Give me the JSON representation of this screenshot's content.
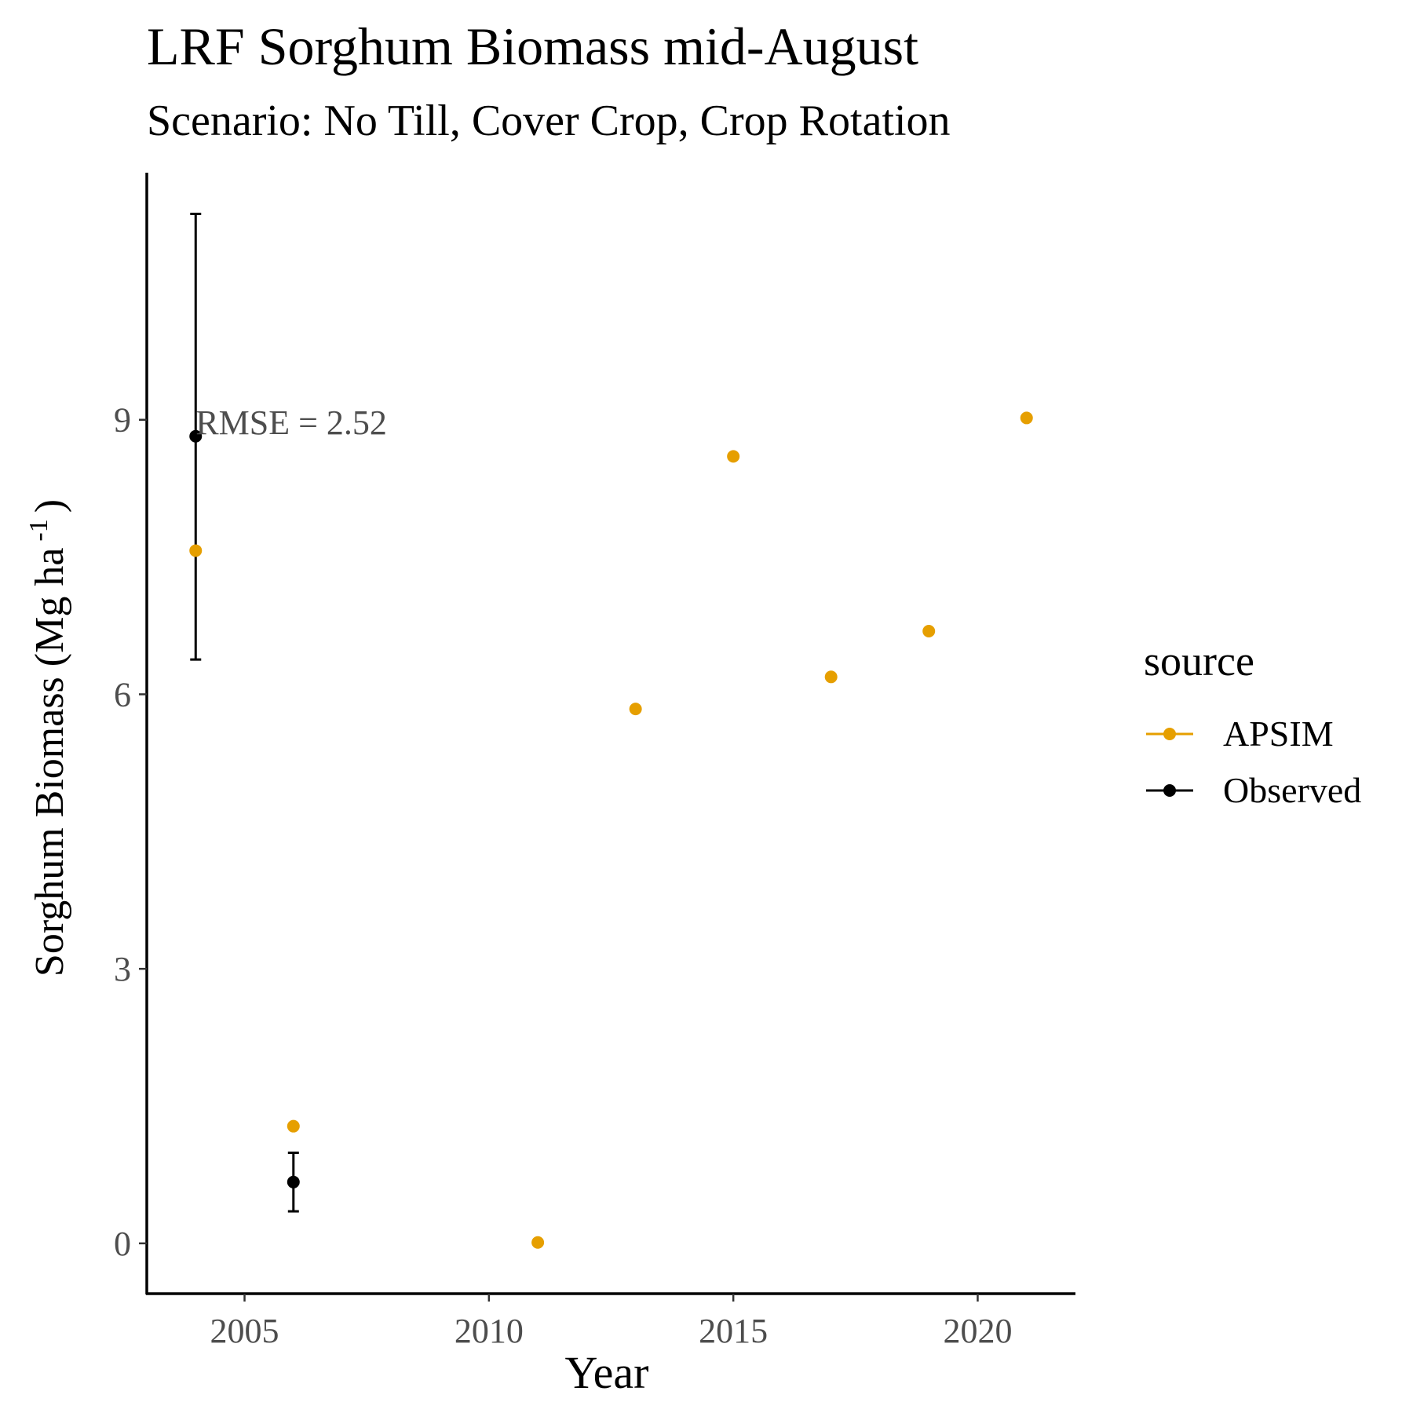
{
  "chart_data": {
    "type": "scatter",
    "title": "LRF Sorghum Biomass mid-August",
    "subtitle": "Scenario: No Till, Cover Crop, Crop Rotation",
    "xlabel": "Year",
    "ylabel": "Sorghum Biomass (Mg ha",
    "ylabel_superscript": "-1",
    "ylabel_close": ")",
    "xlim": [
      2003,
      2022
    ],
    "ylim": [
      -0.55,
      11.7
    ],
    "xticks": [
      2005,
      2010,
      2015,
      2020
    ],
    "yticks": [
      0,
      3,
      6,
      9
    ],
    "grid": false,
    "legend": {
      "title": "source",
      "position": "right",
      "entries": [
        "APSIM",
        "Observed"
      ]
    },
    "annotation": {
      "text": "RMSE = 2.52",
      "x": 2004,
      "y": 8.98
    },
    "series": [
      {
        "name": "APSIM",
        "color": "#E69F00",
        "points": [
          {
            "x": 2004,
            "y": 7.57
          },
          {
            "x": 2006,
            "y": 1.28
          },
          {
            "x": 2011,
            "y": 0.01
          },
          {
            "x": 2013,
            "y": 5.84
          },
          {
            "x": 2015,
            "y": 8.6
          },
          {
            "x": 2017,
            "y": 6.19
          },
          {
            "x": 2019,
            "y": 6.69
          },
          {
            "x": 2021,
            "y": 9.02
          }
        ]
      },
      {
        "name": "Observed",
        "color": "#000000",
        "points": [
          {
            "x": 2004,
            "y": 8.82,
            "ymin": 6.38,
            "ymax": 11.25
          },
          {
            "x": 2006,
            "y": 0.67,
            "ymin": 0.35,
            "ymax": 0.99
          }
        ]
      }
    ]
  }
}
